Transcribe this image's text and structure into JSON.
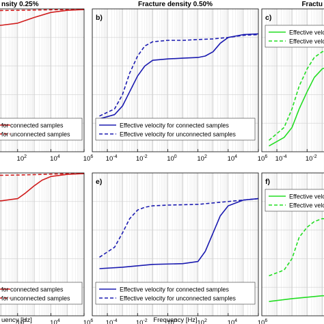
{
  "chart_data": [
    {
      "panel_label": "",
      "title": "nsity 0.25%",
      "type": "line",
      "xscale": "log",
      "xlim": [
        0.0001,
        1000000
      ],
      "ylim": [
        0,
        1
      ],
      "grid": true,
      "x_ticks": [
        "10^2",
        "10^4",
        "10^6"
      ],
      "xlabel": "",
      "legend_position": "bottom",
      "legend": [
        "for connected samples",
        "for unconnected samples"
      ],
      "series": [
        {
          "name": "for connected samples",
          "color": "#d01c1c",
          "style": "solid",
          "x": [
            1e-05,
            1,
            10,
            100,
            1000,
            10000,
            100000,
            1000000
          ],
          "y": [
            0.88,
            0.88,
            0.885,
            0.9,
            0.94,
            0.975,
            0.99,
            0.995
          ]
        },
        {
          "name": "for unconnected samples",
          "color": "#d01c1c",
          "style": "dashed",
          "x": [
            1e-05,
            1,
            100,
            1000,
            10000,
            1000000
          ],
          "y": [
            0.985,
            0.987,
            0.99,
            0.992,
            0.994,
            0.996
          ]
        }
      ]
    },
    {
      "panel_label": "b)",
      "title": "Fracture density 0.50%",
      "type": "line",
      "xscale": "log",
      "xlim": [
        1e-05,
        1000000
      ],
      "ylim": [
        0,
        1
      ],
      "grid": true,
      "x_ticks": [
        "10^-4",
        "10^-2",
        "10^0",
        "10^2",
        "10^4",
        "10^6"
      ],
      "xlabel": "",
      "legend_position": "bottom",
      "legend": [
        "Effective velocity for connected samples",
        "Effective velocity for unconnected samples"
      ],
      "series": [
        {
          "name": "Effective velocity for connected samples",
          "color": "#1a1ab0",
          "style": "solid",
          "x": [
            3e-05,
            0.0003,
            0.001,
            0.003,
            0.01,
            0.03,
            0.1,
            1,
            10,
            100,
            300,
            1000,
            3000,
            10000,
            100000,
            1000000
          ],
          "y": [
            0.23,
            0.26,
            0.32,
            0.42,
            0.53,
            0.6,
            0.64,
            0.65,
            0.655,
            0.66,
            0.67,
            0.7,
            0.76,
            0.8,
            0.82,
            0.825
          ]
        },
        {
          "name": "Effective velocity for unconnected samples",
          "color": "#1a1ab0",
          "style": "dashed",
          "x": [
            3e-05,
            0.0003,
            0.001,
            0.003,
            0.01,
            0.03,
            0.1,
            1,
            10,
            100,
            1000,
            10000,
            100000,
            1000000
          ],
          "y": [
            0.25,
            0.3,
            0.4,
            0.55,
            0.67,
            0.74,
            0.77,
            0.78,
            0.78,
            0.785,
            0.79,
            0.8,
            0.815,
            0.82
          ]
        }
      ]
    },
    {
      "panel_label": "c)",
      "title": "Fractu",
      "type": "line",
      "xscale": "log",
      "xlim": [
        1e-05,
        1000000
      ],
      "ylim": [
        0,
        1
      ],
      "grid": true,
      "x_ticks": [
        "10^-4",
        "10^-2"
      ],
      "xlabel": "",
      "legend_position": "top",
      "legend": [
        "Effective velocity",
        "Effective velocity"
      ],
      "series": [
        {
          "name": "Effective velocity",
          "color": "#22dd22",
          "style": "solid",
          "x": [
            3e-05,
            0.0003,
            0.001,
            0.003,
            0.01,
            0.03,
            0.1,
            1
          ],
          "y": [
            0.04,
            0.1,
            0.17,
            0.3,
            0.42,
            0.52,
            0.58,
            0.62
          ]
        },
        {
          "name": "Effective velocity",
          "color": "#22dd22",
          "style": "dashed",
          "x": [
            3e-05,
            0.0003,
            0.001,
            0.003,
            0.01,
            0.03,
            0.1,
            1
          ],
          "y": [
            0.08,
            0.17,
            0.3,
            0.46,
            0.58,
            0.66,
            0.7,
            0.72
          ]
        }
      ]
    },
    {
      "panel_label": "",
      "title": "",
      "type": "line",
      "xscale": "log",
      "xlim": [
        0.0001,
        1000000
      ],
      "ylim": [
        0,
        1
      ],
      "grid": true,
      "x_ticks": [
        "10^2",
        "10^4",
        "10^6"
      ],
      "xlabel": "uency [Hz]",
      "legend_position": "bottom",
      "legend": [
        "for connected samples",
        "for unconnected samples"
      ],
      "series": [
        {
          "name": "for connected samples",
          "color": "#d01c1c",
          "style": "solid",
          "x": [
            1e-05,
            1,
            10,
            100,
            300,
            1000,
            3000,
            10000,
            100000,
            1000000
          ],
          "y": [
            0.8,
            0.8,
            0.805,
            0.82,
            0.86,
            0.91,
            0.95,
            0.975,
            0.99,
            0.995
          ]
        },
        {
          "name": "for unconnected samples",
          "color": "#d01c1c",
          "style": "dashed",
          "x": [
            1e-05,
            1,
            100,
            1000,
            10000,
            1000000
          ],
          "y": [
            0.98,
            0.982,
            0.985,
            0.988,
            0.992,
            0.996
          ]
        }
      ]
    },
    {
      "panel_label": "e)",
      "title": "",
      "type": "line",
      "xscale": "log",
      "xlim": [
        1e-05,
        1000000
      ],
      "ylim": [
        0,
        1
      ],
      "grid": true,
      "x_ticks": [
        "10^-4",
        "10^-2",
        "10^0",
        "10^2",
        "10^4",
        "10^6"
      ],
      "xlabel": "Frequency [Hz]",
      "legend_position": "bottom",
      "legend": [
        "Effective velocity for connected samples",
        "Effective velocity for unconnected samples"
      ],
      "series": [
        {
          "name": "Effective velocity for connected samples",
          "color": "#1a1ab0",
          "style": "solid",
          "x": [
            3e-05,
            0.001,
            0.1,
            10,
            100,
            300,
            1000,
            3000,
            10000,
            100000,
            1000000
          ],
          "y": [
            0.33,
            0.34,
            0.36,
            0.365,
            0.38,
            0.45,
            0.58,
            0.7,
            0.77,
            0.81,
            0.82
          ]
        },
        {
          "name": "Effective velocity for unconnected samples",
          "color": "#1a1ab0",
          "style": "dashed",
          "x": [
            3e-05,
            0.0003,
            0.001,
            0.003,
            0.01,
            0.03,
            0.1,
            1,
            100,
            10000,
            1000000
          ],
          "y": [
            0.41,
            0.48,
            0.58,
            0.68,
            0.74,
            0.76,
            0.77,
            0.775,
            0.78,
            0.8,
            0.82
          ]
        }
      ]
    },
    {
      "panel_label": "f)",
      "title": "",
      "type": "line",
      "xscale": "log",
      "xlim": [
        1e-05,
        1000000
      ],
      "ylim": [
        0,
        1
      ],
      "grid": true,
      "x_ticks": [],
      "xlabel": "",
      "legend_position": "top",
      "legend": [
        "Effective veloc",
        "Effective veloc"
      ],
      "series": [
        {
          "name": "Effective veloc",
          "color": "#22dd22",
          "style": "solid",
          "x": [
            3e-05,
            0.001,
            0.01,
            0.1,
            1
          ],
          "y": [
            0.1,
            0.12,
            0.13,
            0.14,
            0.14
          ]
        },
        {
          "name": "Effective veloc",
          "color": "#22dd22",
          "style": "dashed",
          "x": [
            3e-05,
            0.0003,
            0.001,
            0.003,
            0.01,
            0.03,
            0.1,
            1
          ],
          "y": [
            0.28,
            0.32,
            0.4,
            0.55,
            0.62,
            0.66,
            0.68,
            0.68
          ]
        }
      ]
    }
  ]
}
